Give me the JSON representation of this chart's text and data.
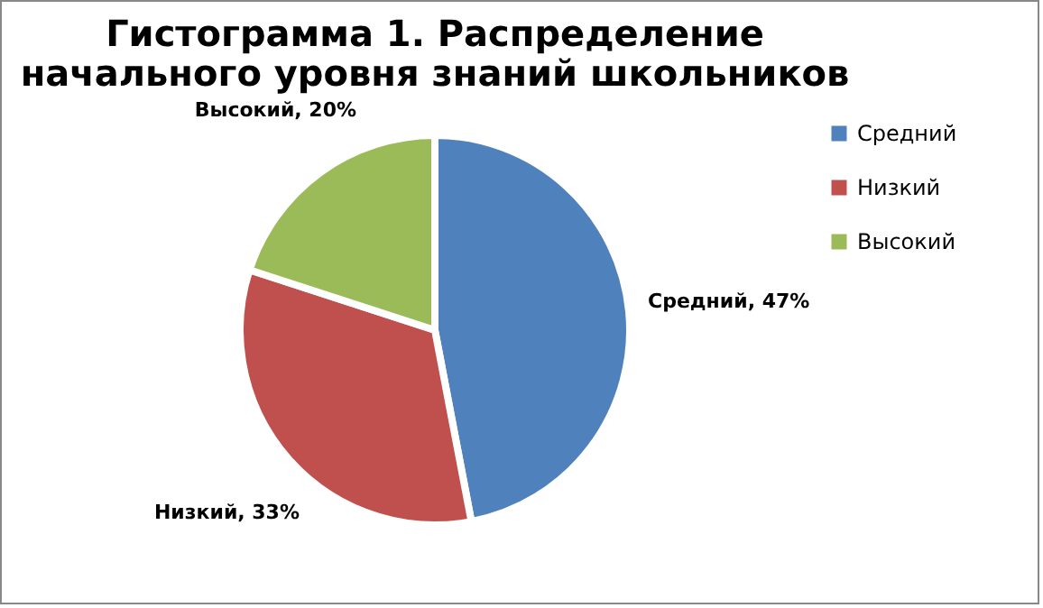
{
  "chart_data": {
    "type": "pie",
    "title": "Гистограмма 1. Распределение начального уровня знаний школьников",
    "categories": [
      "Средний",
      "Низкий",
      "Высокий"
    ],
    "values": [
      47,
      33,
      20
    ],
    "colors": [
      "#4f81bd",
      "#c0504d",
      "#9bbb59"
    ],
    "value_labels": [
      "Средний, 47%",
      "Низкий, 33%",
      "Высокий, 20%"
    ],
    "legend": "right"
  }
}
